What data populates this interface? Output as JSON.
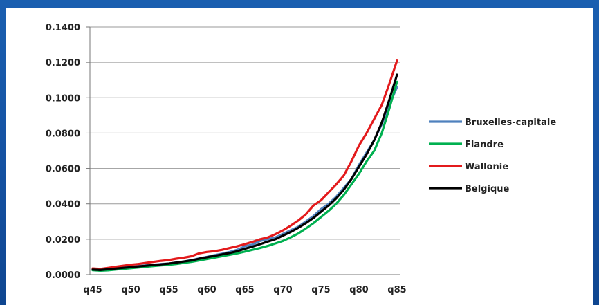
{
  "chart_data": {
    "type": "line",
    "title": "",
    "xlabel": "",
    "ylabel": "",
    "ylim": [
      0,
      0.14
    ],
    "yticks": [
      "0.0000",
      "0.0200",
      "0.0400",
      "0.0600",
      "0.0800",
      "0.1000",
      "0.1200",
      "0.1400"
    ],
    "xtick_labels": [
      "q45",
      "q50",
      "q55",
      "q60",
      "q65",
      "q70",
      "q75",
      "q80",
      "q85"
    ],
    "x": [
      "q45",
      "q46",
      "q47",
      "q48",
      "q49",
      "q50",
      "q51",
      "q52",
      "q53",
      "q54",
      "q55",
      "q56",
      "q57",
      "q58",
      "q59",
      "q60",
      "q61",
      "q62",
      "q63",
      "q64",
      "q65",
      "q66",
      "q67",
      "q68",
      "q69",
      "q70",
      "q71",
      "q72",
      "q73",
      "q74",
      "q75",
      "q76",
      "q77",
      "q78",
      "q79",
      "q80",
      "q81",
      "q82",
      "q83",
      "q84",
      "q85"
    ],
    "grid": "horizontal",
    "legend_position": "right",
    "series": [
      {
        "name": "Bruxelles-capitale",
        "color": "#4f81bd",
        "values": [
          0.003,
          0.0028,
          0.0032,
          0.0036,
          0.004,
          0.0044,
          0.0048,
          0.0052,
          0.0056,
          0.006,
          0.0062,
          0.0068,
          0.0074,
          0.0082,
          0.0092,
          0.01,
          0.011,
          0.0118,
          0.0128,
          0.014,
          0.016,
          0.017,
          0.019,
          0.02,
          0.021,
          0.023,
          0.025,
          0.027,
          0.03,
          0.033,
          0.037,
          0.04,
          0.044,
          0.049,
          0.054,
          0.062,
          0.069,
          0.076,
          0.085,
          0.096,
          0.106
        ]
      },
      {
        "name": "Flandre",
        "color": "#00b050",
        "values": [
          0.0025,
          0.0022,
          0.0024,
          0.0028,
          0.0032,
          0.0036,
          0.004,
          0.0044,
          0.0048,
          0.0052,
          0.0055,
          0.006,
          0.0066,
          0.0072,
          0.008,
          0.0088,
          0.0096,
          0.0104,
          0.0112,
          0.012,
          0.013,
          0.014,
          0.015,
          0.0162,
          0.0176,
          0.019,
          0.021,
          0.0232,
          0.026,
          0.029,
          0.0325,
          0.036,
          0.04,
          0.045,
          0.051,
          0.057,
          0.064,
          0.07,
          0.08,
          0.094,
          0.109
        ]
      },
      {
        "name": "Wallonie",
        "color": "#e31a1c",
        "values": [
          0.0035,
          0.0032,
          0.0038,
          0.0044,
          0.005,
          0.0056,
          0.006,
          0.0066,
          0.0072,
          0.0078,
          0.0082,
          0.009,
          0.0096,
          0.0104,
          0.012,
          0.0128,
          0.0132,
          0.014,
          0.015,
          0.016,
          0.0172,
          0.0185,
          0.02,
          0.021,
          0.0228,
          0.025,
          0.0276,
          0.0305,
          0.034,
          0.039,
          0.042,
          0.0465,
          0.051,
          0.056,
          0.064,
          0.073,
          0.08,
          0.088,
          0.096,
          0.108,
          0.121
        ]
      },
      {
        "name": "Belgique",
        "color": "#000000",
        "values": [
          0.0028,
          0.0026,
          0.003,
          0.0034,
          0.0038,
          0.0042,
          0.0046,
          0.005,
          0.0054,
          0.0058,
          0.0062,
          0.0068,
          0.0074,
          0.008,
          0.009,
          0.0098,
          0.0106,
          0.0114,
          0.0122,
          0.0132,
          0.0146,
          0.0158,
          0.0172,
          0.0186,
          0.02,
          0.022,
          0.024,
          0.0264,
          0.029,
          0.032,
          0.0355,
          0.039,
          0.043,
          0.048,
          0.054,
          0.061,
          0.068,
          0.076,
          0.086,
          0.099,
          0.113
        ]
      }
    ]
  }
}
